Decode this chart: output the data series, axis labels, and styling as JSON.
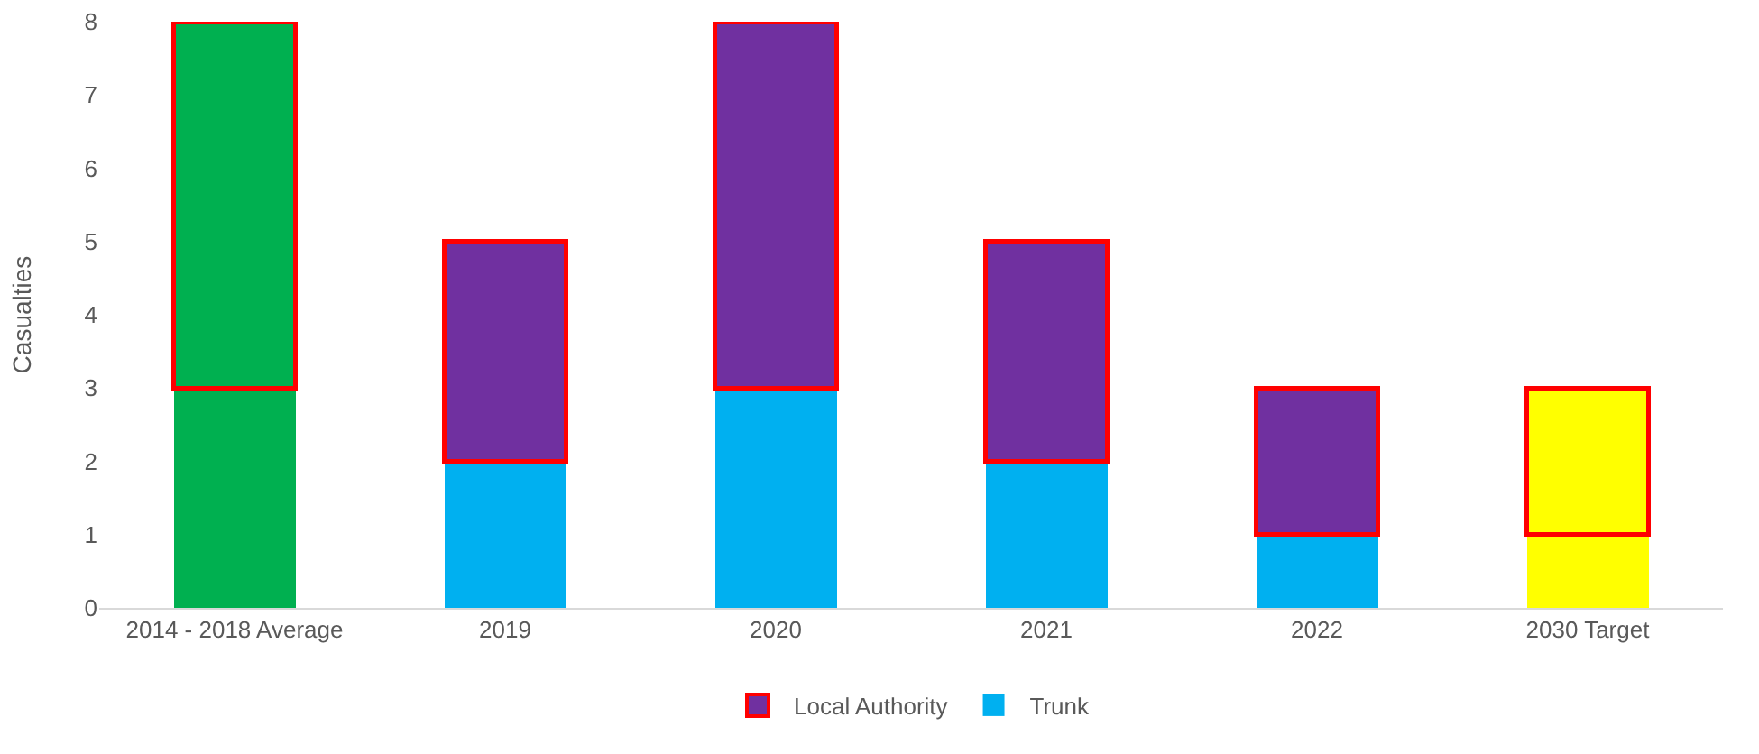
{
  "chart_data": {
    "type": "bar",
    "stacked": true,
    "ylabel": "Casualties",
    "categories": [
      "2014 - 2018 Average",
      "2019",
      "2020",
      "2021",
      "2022",
      "2030 Target"
    ],
    "series": [
      {
        "name": "Trunk",
        "color": "#00b0f0",
        "colors": [
          "#00b050",
          "#00b0f0",
          "#00b0f0",
          "#00b0f0",
          "#00b0f0",
          "#ffff00"
        ],
        "values": [
          3,
          2,
          3,
          2,
          1,
          1
        ]
      },
      {
        "name": "Local Authority",
        "color": "#7030a0",
        "colors": [
          "#00b050",
          "#7030a0",
          "#7030a0",
          "#7030a0",
          "#7030a0",
          "#ffff00"
        ],
        "values": [
          5,
          3,
          5,
          3,
          2,
          2
        ]
      }
    ],
    "ylim": [
      0,
      8
    ],
    "yticks": [
      0,
      1,
      2,
      3,
      4,
      5,
      6,
      7,
      8
    ],
    "grid": false,
    "legend": "bottom"
  }
}
